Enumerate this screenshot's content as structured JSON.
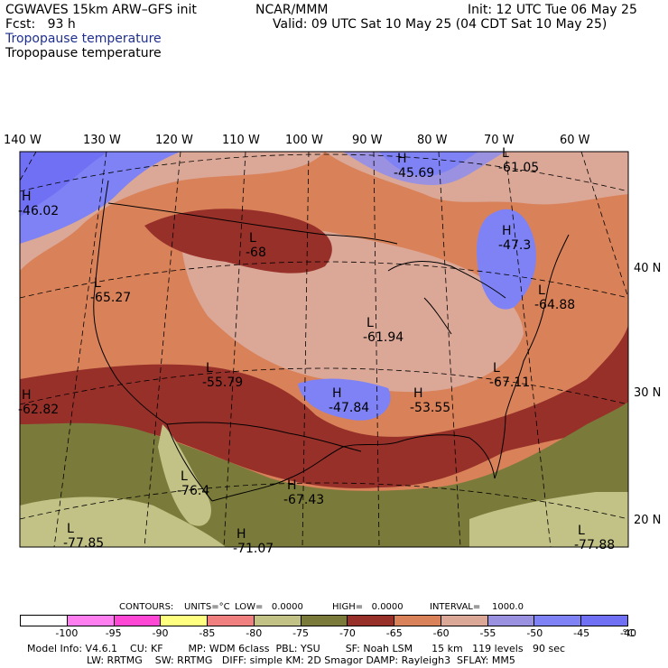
{
  "header": {
    "model_line": "CGWAVES 15km ARW–GFS init",
    "fcst_line": "Fcst:   93 h",
    "org": "NCAR/MMM",
    "init_line": "Init: 12 UTC Tue 06 May 25",
    "valid_line": "Valid: 09 UTC Sat 10 May 25 (04 CDT Sat 10 May 25)",
    "field_line_1": "Tropopause temperature",
    "field_line_2": "Tropopause temperature"
  },
  "longitude_labels": [
    "140 W",
    "130 W",
    "120 W",
    "110 W",
    "100 W",
    "90 W",
    "80 W",
    "70 W",
    "60 W"
  ],
  "latitude_labels": [
    "40 N",
    "30 N",
    "20 N"
  ],
  "extrema": [
    {
      "type": "H",
      "value": "-46.02"
    },
    {
      "type": "H",
      "value": "-45.69"
    },
    {
      "type": "L",
      "value": "-61.05"
    },
    {
      "type": "L",
      "value": "-68"
    },
    {
      "type": "H",
      "value": "-47.3"
    },
    {
      "type": "L",
      "value": "-65.27"
    },
    {
      "type": "L",
      "value": "-64.88"
    },
    {
      "type": "L",
      "value": "-61.94"
    },
    {
      "type": "L",
      "value": "-67.11"
    },
    {
      "type": "H",
      "value": "-62.82"
    },
    {
      "type": "L",
      "value": "-55.79"
    },
    {
      "type": "H",
      "value": "-47.84"
    },
    {
      "type": "H",
      "value": "-53.55"
    },
    {
      "type": "L",
      "value": "-76.4"
    },
    {
      "type": "H",
      "value": "-67.43"
    },
    {
      "type": "L",
      "value": "-77.85"
    },
    {
      "type": "H",
      "value": "-71.07"
    },
    {
      "type": "L",
      "value": "-77.88"
    }
  ],
  "contour_info": {
    "contours": "CONTOURS:",
    "units": "UNITS=°C",
    "low": "LOW=   0.0000",
    "high": "HIGH=   0.0000",
    "interval": "INTERVAL=    1000.0"
  },
  "colorbar": {
    "colors": [
      "#ffffff",
      "#ff7ff0",
      "#ff47d6",
      "#ffff80",
      "#f08080",
      "#c2c287",
      "#7a7a3a",
      "#98302a",
      "#d9825a",
      "#dba898",
      "#9a92e0",
      "#7e82f4",
      "#7070f4"
    ],
    "ticks": [
      "-100",
      "-95",
      "-90",
      "-85",
      "-80",
      "-75",
      "-70",
      "-65",
      "-60",
      "-55",
      "-50",
      "-45",
      "-40",
      "°C"
    ]
  },
  "footer": {
    "line1": "Model Info: V4.6.1    CU: KF        MP: WDM 6class  PBL: YSU        SF: Noah LSM      15 km   119 levels   90 sec",
    "line2": "LW: RRTMG    SW: RRTMG   DIFF: simple KM: 2D Smagor DAMP: Rayleigh3  SFLAY: MM5"
  }
}
